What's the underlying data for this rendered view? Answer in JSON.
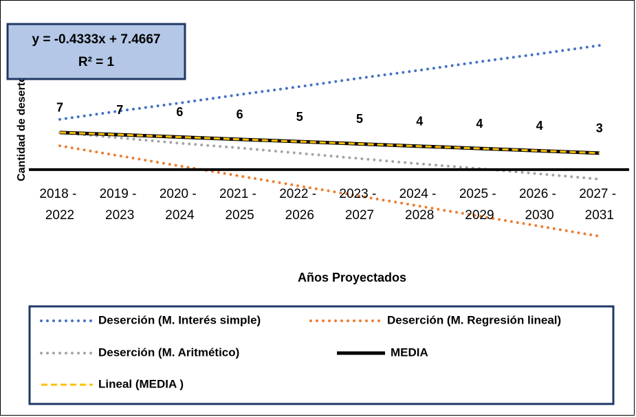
{
  "chart_data": {
    "type": "line",
    "x_label": "Años Proyectados",
    "y_label": "Cantidad de desertores",
    "annotations": [
      "y = -0.4333x + 7.4667",
      "R² = 1"
    ],
    "categories": [
      "2018 - 2022",
      "2019 - 2023",
      "2020 - 2024",
      "2021 - 2025",
      "2022 - 2026",
      "2023 - 2027",
      "2024 - 2028",
      "2025 - 2029",
      "2026 - 2030",
      "2027 - 2031"
    ],
    "ylim": [
      -13,
      25
    ],
    "series": [
      {
        "name": "Deserción (M. Interés simple)",
        "color": "#4472c4",
        "line_style": "dotted",
        "values": [
          9.5,
          11.1,
          12.6,
          14.2,
          15.7,
          17.3,
          18.8,
          20.4,
          21.9,
          23.5
        ]
      },
      {
        "name": "Deserción (M. Regresión lineal)",
        "color": "#ed7d31",
        "line_style": "dotted",
        "values": [
          4.5,
          2.6,
          0.7,
          -1.2,
          -3.1,
          -5.0,
          -6.9,
          -8.8,
          -10.7,
          -12.6
        ]
      },
      {
        "name": "Deserción (M. Aritmético)",
        "color": "#a5a5a5",
        "line_style": "dotted",
        "values": [
          7.0,
          6.0,
          5.0,
          4.1,
          3.1,
          2.1,
          1.1,
          0.2,
          -0.8,
          -1.8
        ]
      },
      {
        "name": "MEDIA",
        "color": "#000000",
        "line_style": "solid",
        "values": [
          7.03,
          6.6,
          6.17,
          5.73,
          5.3,
          4.87,
          4.43,
          4.0,
          3.57,
          3.13
        ],
        "value_labels": [
          "7",
          "7",
          "6",
          "6",
          "5",
          "5",
          "4",
          "4",
          "4",
          "3"
        ]
      },
      {
        "name": "Lineal (MEDIA )",
        "color": "#ffc000",
        "line_style": "dashed",
        "values": [
          7.03,
          6.6,
          6.17,
          5.73,
          5.3,
          4.87,
          4.43,
          4.0,
          3.57,
          3.13
        ]
      }
    ]
  }
}
